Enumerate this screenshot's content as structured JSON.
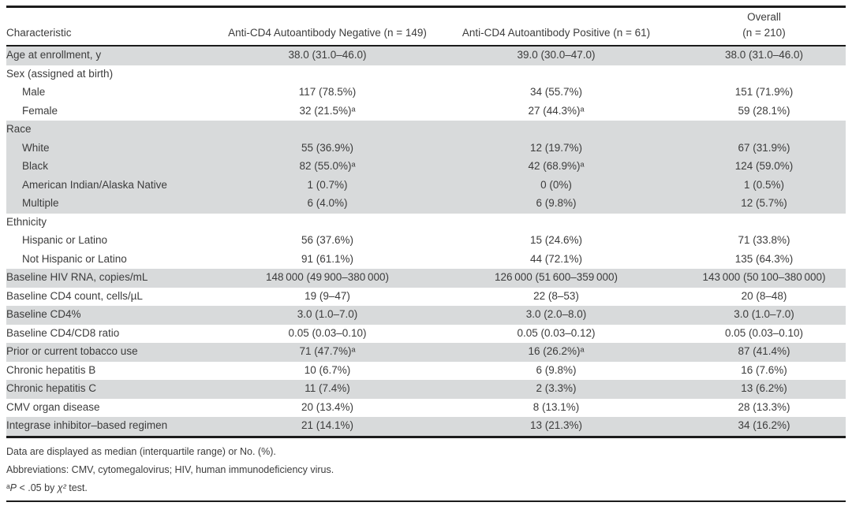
{
  "colors": {
    "page_bg": "#ffffff",
    "row_shaded": "#d8dadb",
    "rule": "#1c1c1c",
    "text": "#3c3c3c"
  },
  "table": {
    "header": {
      "characteristic": "Characteristic",
      "negative": "Anti-CD4 Autoantibody Negative (n = 149)",
      "positive": "Anti-CD4 Autoantibody Positive (n = 61)",
      "overall_line1": "Overall",
      "overall_line2": "(n = 210)"
    },
    "rows": [
      {
        "label": "Age at enrollment, y",
        "negative": "38.0 (31.0–46.0)",
        "positive": "39.0 (30.0–47.0)",
        "overall": "38.0 (31.0–46.0)",
        "shaded": true,
        "indent": false
      },
      {
        "label": "Sex (assigned at birth)",
        "negative": "",
        "positive": "",
        "overall": "",
        "shaded": false,
        "indent": false
      },
      {
        "label": "Male",
        "negative": "117 (78.5%)",
        "positive": "34 (55.7%)",
        "overall": "151 (71.9%)",
        "shaded": false,
        "indent": true
      },
      {
        "label": "Female",
        "negative": "32 (21.5%)ᵃ",
        "positive": "27 (44.3%)ᵃ",
        "overall": "59 (28.1%)",
        "shaded": false,
        "indent": true
      },
      {
        "label": "Race",
        "negative": "",
        "positive": "",
        "overall": "",
        "shaded": true,
        "indent": false
      },
      {
        "label": "White",
        "negative": "55 (36.9%)",
        "positive": "12 (19.7%)",
        "overall": "67 (31.9%)",
        "shaded": true,
        "indent": true
      },
      {
        "label": "Black",
        "negative": "82 (55.0%)ᵃ",
        "positive": "42 (68.9%)ᵃ",
        "overall": "124 (59.0%)",
        "shaded": true,
        "indent": true
      },
      {
        "label": "American Indian/Alaska Native",
        "negative": "1 (0.7%)",
        "positive": "0 (0%)",
        "overall": "1 (0.5%)",
        "shaded": true,
        "indent": true
      },
      {
        "label": "Multiple",
        "negative": "6 (4.0%)",
        "positive": "6 (9.8%)",
        "overall": "12 (5.7%)",
        "shaded": true,
        "indent": true
      },
      {
        "label": "Ethnicity",
        "negative": "",
        "positive": "",
        "overall": "",
        "shaded": false,
        "indent": false
      },
      {
        "label": "Hispanic or Latino",
        "negative": "56 (37.6%)",
        "positive": "15 (24.6%)",
        "overall": "71 (33.8%)",
        "shaded": false,
        "indent": true
      },
      {
        "label": "Not Hispanic or Latino",
        "negative": "91 (61.1%)",
        "positive": "44 (72.1%)",
        "overall": "135 (64.3%)",
        "shaded": false,
        "indent": true
      },
      {
        "label": "Baseline HIV RNA, copies/mL",
        "negative": "148 000 (49 900–380 000)",
        "positive": "126 000 (51 600–359 000)",
        "overall": "143 000 (50 100–380 000)",
        "shaded": true,
        "indent": false
      },
      {
        "label": "Baseline CD4 count, cells/µL",
        "negative": "19 (9–47)",
        "positive": "22 (8–53)",
        "overall": "20 (8–48)",
        "shaded": false,
        "indent": false
      },
      {
        "label": "Baseline CD4%",
        "negative": "3.0 (1.0–7.0)",
        "positive": "3.0 (2.0–8.0)",
        "overall": "3.0 (1.0–7.0)",
        "shaded": true,
        "indent": false
      },
      {
        "label": "Baseline CD4/CD8 ratio",
        "negative": "0.05 (0.03–0.10)",
        "positive": "0.05 (0.03–0.12)",
        "overall": "0.05 (0.03–0.10)",
        "shaded": false,
        "indent": false
      },
      {
        "label": "Prior or current tobacco use",
        "negative": "71 (47.7%)ᵃ",
        "positive": "16 (26.2%)ᵃ",
        "overall": "87 (41.4%)",
        "shaded": true,
        "indent": false
      },
      {
        "label": "Chronic hepatitis B",
        "negative": "10 (6.7%)",
        "positive": "6 (9.8%)",
        "overall": "16 (7.6%)",
        "shaded": false,
        "indent": false
      },
      {
        "label": "Chronic hepatitis C",
        "negative": "11 (7.4%)",
        "positive": "2 (3.3%)",
        "overall": "13 (6.2%)",
        "shaded": true,
        "indent": false
      },
      {
        "label": "CMV organ disease",
        "negative": "20 (13.4%)",
        "positive": "8 (13.1%)",
        "overall": "28 (13.3%)",
        "shaded": false,
        "indent": false
      },
      {
        "label": "Integrase inhibitor–based regimen",
        "negative": "21 (14.1%)",
        "positive": "13 (21.3%)",
        "overall": "34 (16.2%)",
        "shaded": true,
        "indent": false
      }
    ]
  },
  "footnotes": {
    "data_note": "Data are displayed as median (interquartile range) or No. (%).",
    "abbreviations": "Abbreviations: CMV, cytomegalovirus; HIV, human immunodeficiency virus.",
    "significance": {
      "marker": "ᵃ",
      "p": "P",
      "mid": " < .05 by ",
      "chi": "χ²",
      "end": " test."
    }
  }
}
